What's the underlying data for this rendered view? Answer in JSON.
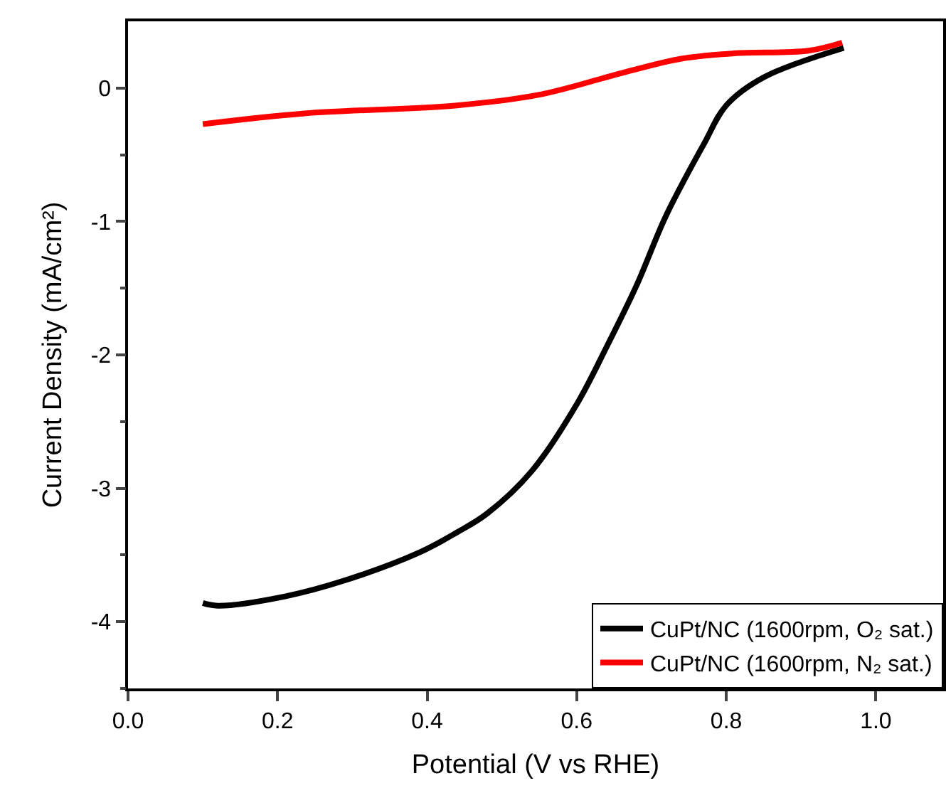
{
  "chart_data": {
    "type": "line",
    "xlabel": "Potential (V vs RHE)",
    "ylabel": "Current Density (mA/cm²)",
    "xlim": [
      0,
      1.09
    ],
    "ylim": [
      -4.5,
      0.5
    ],
    "xticks": [
      "0.0",
      0.2,
      0.4,
      0.6,
      0.8,
      "1.0"
    ],
    "yticks": [
      {
        "value": -4.5,
        "label": null
      },
      -4,
      {
        "value": -3.5,
        "label": null
      },
      -3,
      {
        "value": -2.5,
        "label": null
      },
      -2,
      {
        "value": -1.5,
        "label": null
      },
      -1,
      {
        "value": -0.5,
        "label": null
      },
      0
    ],
    "legend": "bottom right",
    "marker": "none",
    "line_style": "solid",
    "series": [
      {
        "name": "CuPt/NC (1600rpm, O₂ sat.)",
        "color": "#000000",
        "x": [
          0.1,
          0.12,
          0.21,
          0.29,
          0.39,
          0.44,
          0.48,
          0.54,
          0.6,
          0.64,
          0.68,
          0.72,
          0.77,
          0.8,
          0.85,
          0.957
        ],
        "values": [
          -3.86,
          -3.88,
          -3.81,
          -3.69,
          -3.48,
          -3.33,
          -3.19,
          -2.87,
          -2.37,
          -1.94,
          -1.48,
          -0.95,
          -0.42,
          -0.13,
          0.08,
          0.3
        ]
      },
      {
        "name": "CuPt/NC (1600rpm, N₂ sat.)",
        "color": "#ff0000",
        "x": [
          0.1,
          0.236,
          0.44,
          0.55,
          0.665,
          0.74,
          0.81,
          0.91,
          0.955
        ],
        "values": [
          -0.27,
          -0.19,
          -0.13,
          -0.05,
          0.12,
          0.22,
          0.26,
          0.28,
          0.34
        ]
      }
    ]
  }
}
